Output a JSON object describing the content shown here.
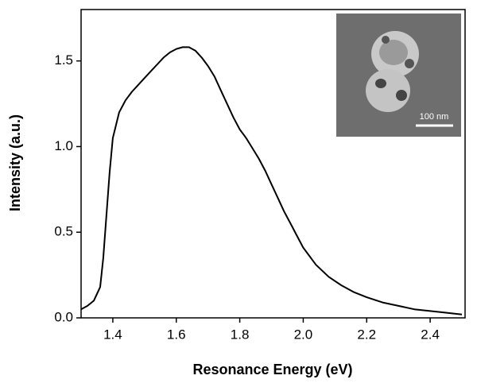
{
  "chart_data": {
    "type": "line",
    "x_label": "Resonance Energy (eV)",
    "y_label": "Intensity (a.u.)",
    "inset_label": "100 nm",
    "x": [
      1.3,
      1.32,
      1.34,
      1.36,
      1.37,
      1.38,
      1.39,
      1.4,
      1.42,
      1.44,
      1.46,
      1.48,
      1.5,
      1.52,
      1.54,
      1.56,
      1.58,
      1.6,
      1.62,
      1.64,
      1.66,
      1.68,
      1.7,
      1.72,
      1.74,
      1.76,
      1.78,
      1.8,
      1.82,
      1.84,
      1.86,
      1.88,
      1.9,
      1.92,
      1.94,
      1.96,
      1.98,
      2.0,
      2.04,
      2.08,
      2.12,
      2.16,
      2.2,
      2.25,
      2.3,
      2.35,
      2.4,
      2.45,
      2.5
    ],
    "values": [
      0.05,
      0.07,
      0.1,
      0.18,
      0.35,
      0.6,
      0.85,
      1.05,
      1.2,
      1.27,
      1.32,
      1.36,
      1.4,
      1.44,
      1.48,
      1.52,
      1.55,
      1.57,
      1.58,
      1.58,
      1.56,
      1.52,
      1.47,
      1.41,
      1.33,
      1.25,
      1.17,
      1.1,
      1.05,
      0.99,
      0.93,
      0.86,
      0.78,
      0.7,
      0.62,
      0.55,
      0.48,
      0.41,
      0.31,
      0.24,
      0.19,
      0.15,
      0.12,
      0.09,
      0.07,
      0.05,
      0.04,
      0.03,
      0.02
    ],
    "color": "#000000",
    "xlim": [
      1.3,
      2.51
    ],
    "ylim": [
      0,
      1.8
    ],
    "xticks": [
      1.4,
      1.6,
      1.8,
      2.0,
      2.2,
      2.4
    ],
    "yticks": [
      {
        "value": 0,
        "label": "0.0"
      },
      0.5,
      {
        "value": 1,
        "label": "1.0"
      },
      1.5
    ]
  }
}
